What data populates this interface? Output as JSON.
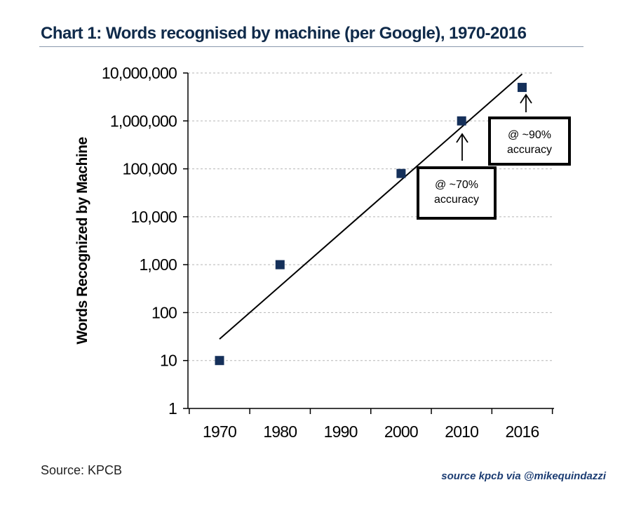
{
  "header": {
    "title": "Chart 1: Words recognised by machine (per Google), 1970-2016"
  },
  "footer": {
    "source_left": "Source: KPCB",
    "source_right": "source kpcb via @mikequindazzi"
  },
  "colors": {
    "marker": "#15305a",
    "title": "#0f2a4a",
    "grid": "#b5b5b5",
    "credit": "#1c3d73"
  },
  "chart_data": {
    "type": "scatter",
    "title": "Chart 1: Words recognised by machine (per Google), 1970-2016",
    "xlabel": "",
    "ylabel": "Words Recognized by Machine",
    "yscale": "log",
    "ylim": [
      1,
      10000000
    ],
    "yticks": [
      1,
      10,
      100,
      1000,
      10000,
      100000,
      1000000,
      10000000
    ],
    "ytick_labels": [
      "1",
      "10",
      "100",
      "1,000",
      "10,000",
      "100,000",
      "1,000,000",
      "10,000,000"
    ],
    "categories": [
      "1970",
      "1980",
      "1990",
      "2000",
      "2010",
      "2016"
    ],
    "series": [
      {
        "name": "Words recognised",
        "points": [
          {
            "x": "1970",
            "y": 10
          },
          {
            "x": "1980",
            "y": 1000
          },
          {
            "x": "2000",
            "y": 80000
          },
          {
            "x": "2010",
            "y": 1000000
          },
          {
            "x": "2016",
            "y": 5000000
          }
        ]
      }
    ],
    "trendline": {
      "from": {
        "x": "1970",
        "y": 28
      },
      "to": {
        "x": "2016",
        "y": 9500000
      }
    },
    "annotations": [
      {
        "lines": [
          "@ ~70%",
          "accuracy"
        ],
        "points_to": "2010"
      },
      {
        "lines": [
          "@ ~90%",
          "accuracy"
        ],
        "points_to": "2016"
      }
    ],
    "grid": true
  }
}
